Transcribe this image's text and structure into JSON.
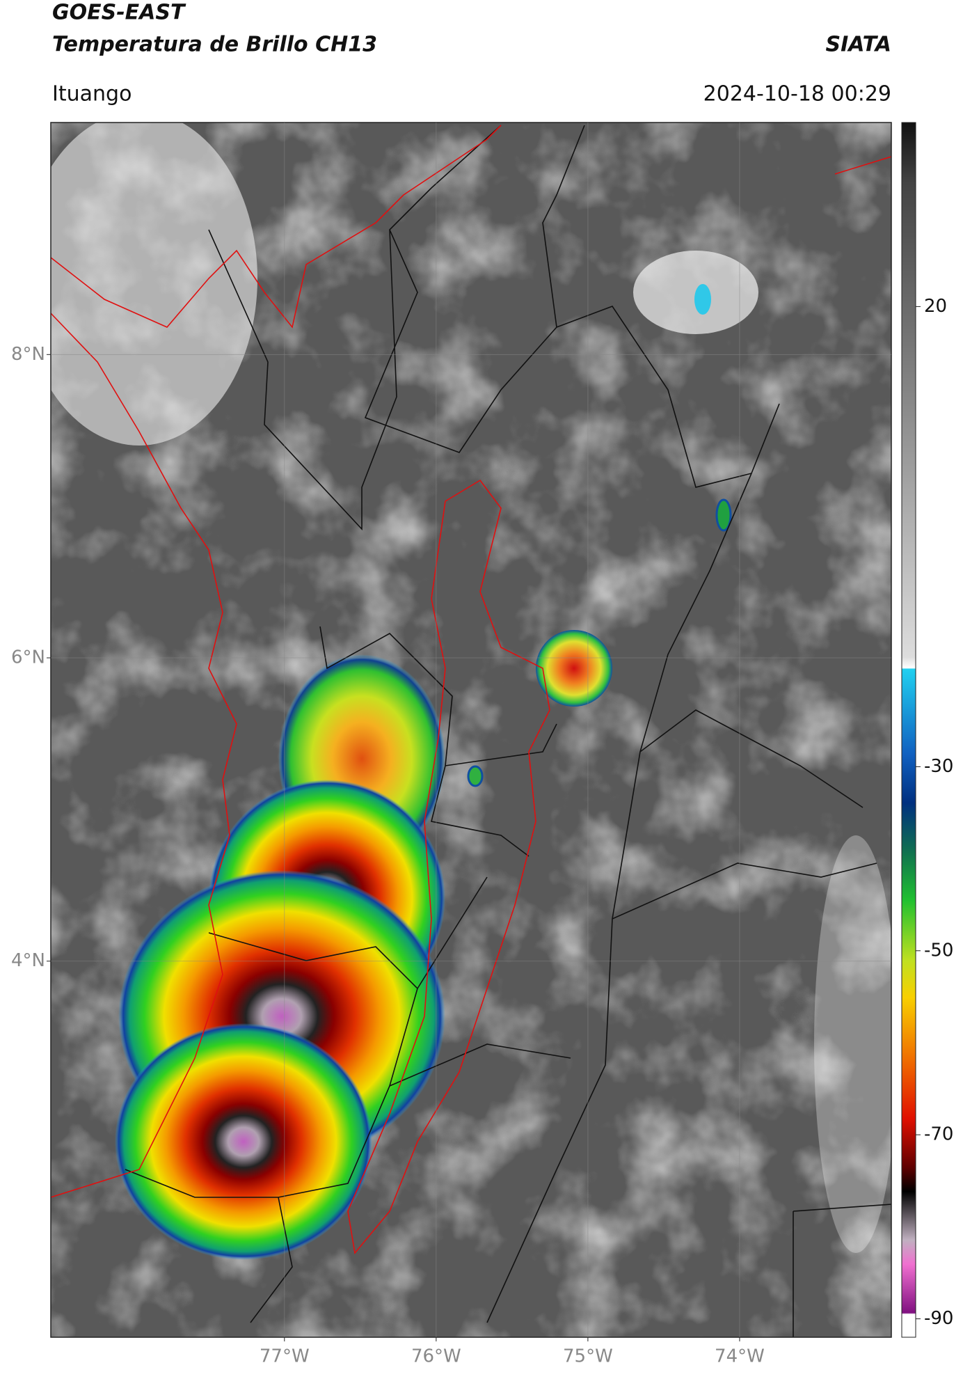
{
  "chart_data": {
    "type": "map",
    "title": "GOES-EAST",
    "subtitle": "Temperatura de Brillo CH13",
    "source": "SIATA",
    "location": "Ituango",
    "datetime": "2024-10-18 00:29",
    "xlim": [
      -78.54,
      -73.0
    ],
    "xticks": [
      {
        "value": -77,
        "label": "77°W"
      },
      {
        "value": -76,
        "label": "76°W"
      },
      {
        "value": -75,
        "label": "75°W"
      },
      {
        "value": -74,
        "label": "74°W"
      }
    ],
    "ylim": [
      1.52,
      9.53
    ],
    "yticks": [
      {
        "value": 4,
        "label": "4°N"
      },
      {
        "value": 6,
        "label": "6°N"
      },
      {
        "value": 8,
        "label": "8°N"
      }
    ],
    "colorbar_lim": [
      -92,
      40
    ],
    "colorbar_ticks": [
      20,
      -30,
      -50,
      -70,
      -90
    ],
    "grid": true
  }
}
